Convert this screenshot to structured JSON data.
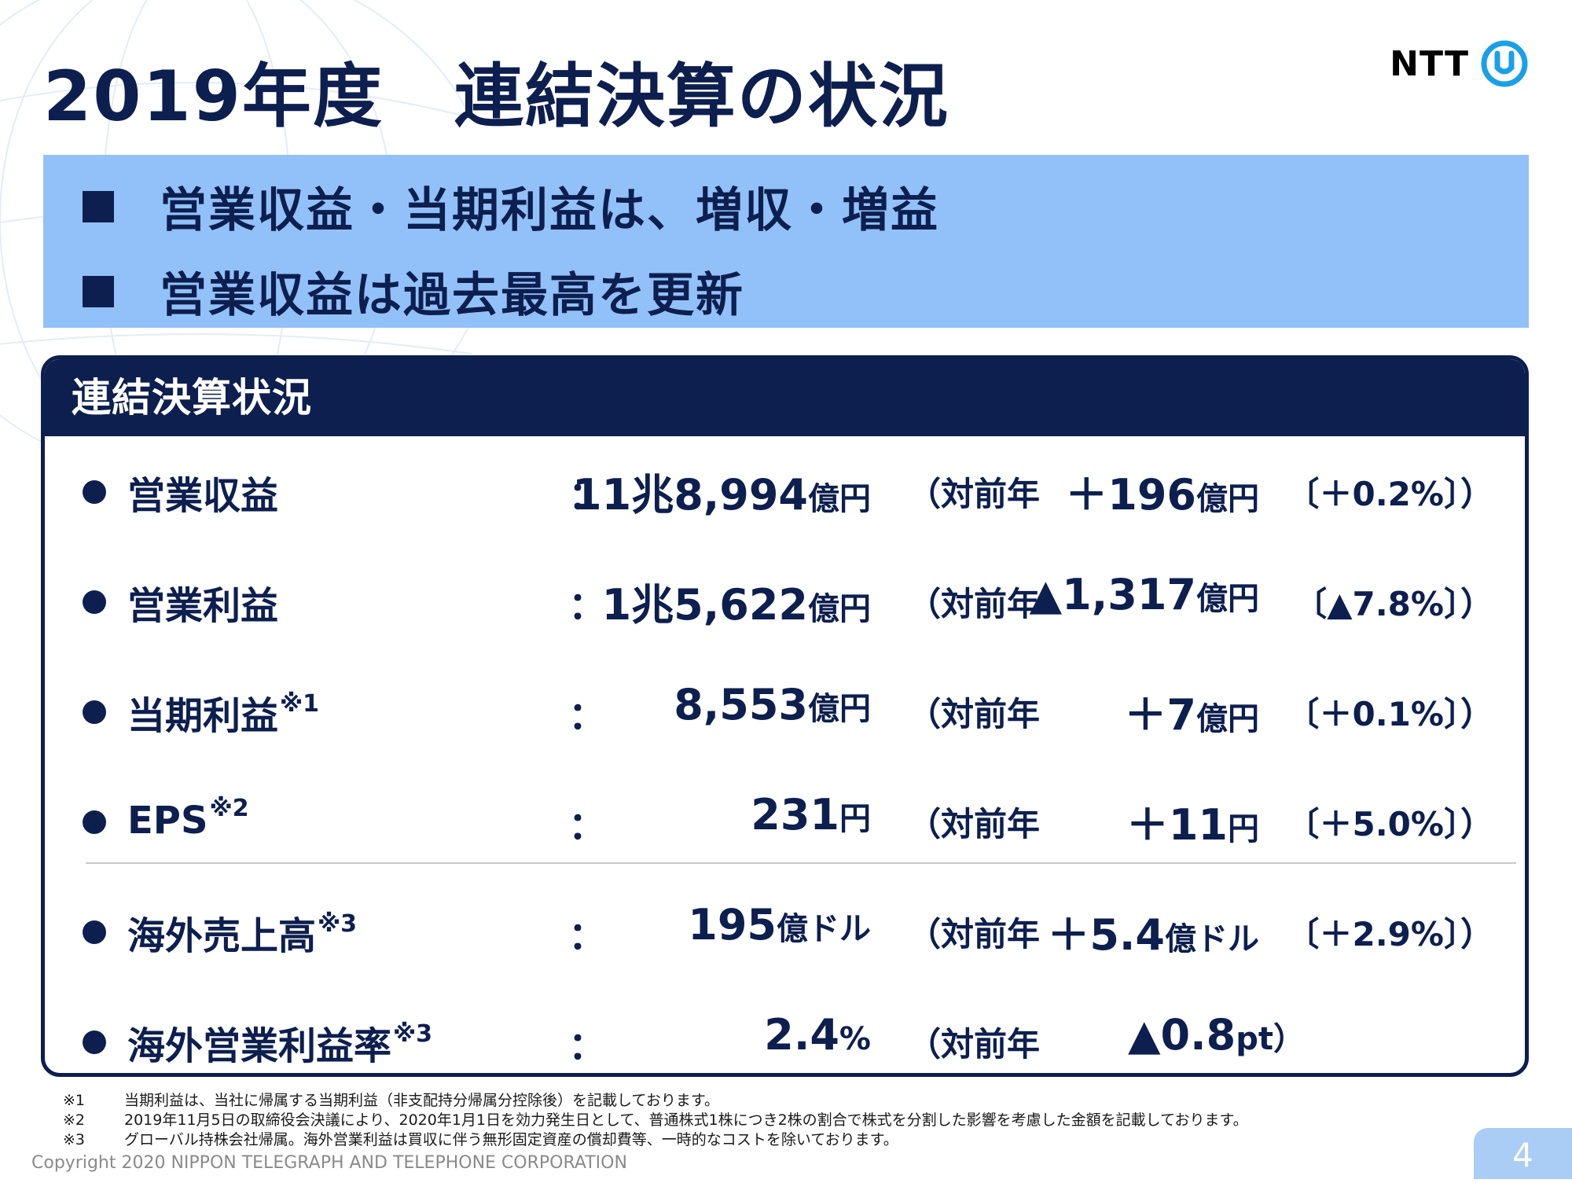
{
  "title": "2019年度　連結決算の状況",
  "logo": {
    "text": "NTT",
    "icon": "ntt-circle-logo-icon"
  },
  "banner": {
    "items": [
      "営業収益・当期利益は、増収・増益",
      "営業収益は過去最高を更新"
    ]
  },
  "panel": {
    "header": "連結決算状況",
    "rows": [
      {
        "label": "営業収益",
        "note": "",
        "colon": "：",
        "value": "11兆8,994",
        "unit": "億円",
        "yoy": "（対前年",
        "change": "＋196",
        "change_unit": "億円",
        "pct": "〔＋0.2%〕）"
      },
      {
        "label": "営業利益",
        "note": "",
        "colon": "：",
        "value": "1兆5,622",
        "unit": "億円",
        "yoy": "（対前年",
        "change": "▲1,317",
        "change_unit": "億円",
        "pct": "〔▲7.8%〕）"
      },
      {
        "label": "当期利益",
        "note": "※1",
        "colon": "：",
        "value": "8,553",
        "unit": "億円",
        "yoy": "（対前年",
        "change": "＋7",
        "change_unit": "億円",
        "pct": "〔＋0.1%〕）"
      },
      {
        "label": "EPS",
        "note": "※2",
        "colon": "：",
        "value": "231",
        "unit": "円",
        "yoy": "（対前年",
        "change": "＋11",
        "change_unit": "円",
        "pct": "〔＋5.0%〕）"
      },
      {
        "label": "海外売上高",
        "note": "※3",
        "colon": "：",
        "value": "195",
        "unit": "億ドル",
        "yoy": "（対前年",
        "change": "＋5.4",
        "change_unit": "億ドル",
        "pct": "〔＋2.9%〕）"
      },
      {
        "label": "海外営業利益率",
        "note": "※3",
        "colon": "：",
        "value": "2.4",
        "unit": "%",
        "yoy": "（対前年",
        "change": "▲0.8",
        "change_unit": "pt",
        "pct": "）"
      }
    ]
  },
  "notes": [
    {
      "mark": "※1",
      "text": "当期利益は、当社に帰属する当期利益（非支配持分帰属分控除後）を記載しております。"
    },
    {
      "mark": "※2",
      "text": "2019年11月5日の取締役会決議により、2020年1月1日を効力発生日として、普通株式1株につき2株の割合で株式を分割した影響を考慮した金額を記載しております。"
    },
    {
      "mark": "※3",
      "text": "グローバル持株会社帰属。海外営業利益は買収に伴う無形固定資産の償却費等、一時的なコストを除いております。"
    }
  ],
  "copyright": "Copyright 2020 NIPPON TELEGRAPH AND TELEPHONE CORPORATION",
  "page_number": "4",
  "colors": {
    "navy": "#0d1f4f",
    "banner": "#92c1f9",
    "page_badge": "#a9cdf5"
  }
}
